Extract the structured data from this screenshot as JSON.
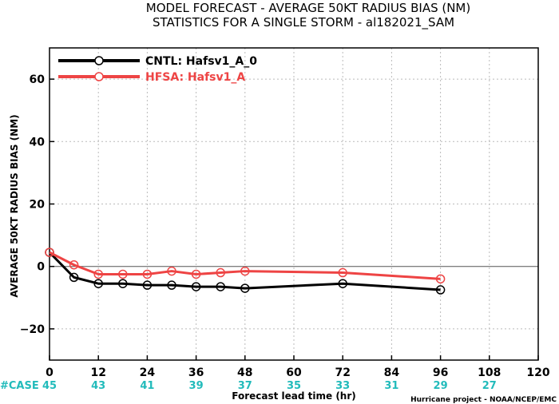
{
  "chart_data": {
    "type": "line",
    "title": "MODEL FORECAST - AVERAGE 50KT RADIUS BIAS (NM)",
    "subtitle": "STATISTICS FOR A SINGLE STORM - al182021_SAM",
    "xlabel": "Forecast lead time (hr)",
    "ylabel": "AVERAGE 50KT RADIUS BIAS (NM)",
    "xlim": [
      0,
      120
    ],
    "ylim": [
      -30,
      70
    ],
    "x_ticks": [
      0,
      12,
      24,
      36,
      48,
      60,
      72,
      84,
      96,
      108,
      120
    ],
    "y_ticks": [
      -20,
      0,
      20,
      40,
      60
    ],
    "grid": true,
    "legend_position": "top-left",
    "series": [
      {
        "name": "CNTL: Hafsv1_A_0",
        "color": "#000000",
        "x": [
          0,
          6,
          12,
          18,
          24,
          30,
          36,
          42,
          48,
          72,
          96
        ],
        "y": [
          4.5,
          -3.5,
          -5.5,
          -5.5,
          -6.0,
          -6.0,
          -6.5,
          -6.5,
          -7.0,
          -5.5,
          -7.5
        ]
      },
      {
        "name": "HFSA: Hafsv1_A",
        "color": "#ee4444",
        "x": [
          0,
          6,
          12,
          18,
          24,
          30,
          36,
          42,
          48,
          72,
          96
        ],
        "y": [
          4.5,
          0.5,
          -2.5,
          -2.5,
          -2.5,
          -1.5,
          -2.5,
          -2.0,
          -1.5,
          -2.0,
          -4.0
        ]
      }
    ],
    "cases": {
      "label": "#CASE",
      "x": [
        0,
        12,
        24,
        36,
        48,
        60,
        72,
        84,
        96,
        108
      ],
      "values": [
        "45",
        "43",
        "41",
        "39",
        "37",
        "35",
        "33",
        "31",
        "29",
        "27"
      ],
      "color": "#22bbbb"
    },
    "credit": "Hurricane project - NOAA/NCEP/EMC"
  }
}
